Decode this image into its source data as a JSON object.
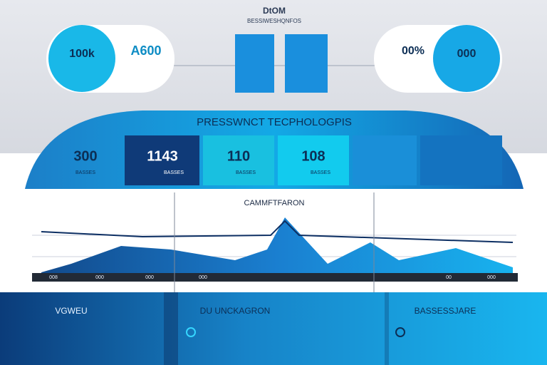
{
  "header": {
    "title": "DtOM",
    "subtitle": "BESSIWESHQNFOS"
  },
  "bubbles": [
    {
      "value": "100k"
    },
    {
      "value": "A600"
    },
    {
      "value": "00%"
    },
    {
      "value": "000"
    }
  ],
  "banner": {
    "title": "PRESSWNCT TECPHOLOGPIS",
    "panels": [
      {
        "value": "300",
        "caption": "BASSES"
      },
      {
        "value": "1143",
        "caption": "BASSES"
      },
      {
        "value": "110",
        "caption": "BASSES"
      },
      {
        "value": "108",
        "caption": "BASSES"
      }
    ]
  },
  "chart": {
    "title": "CAMMFTFARON",
    "labels": [
      "008",
      "000",
      "000",
      "000",
      "00",
      "000"
    ]
  },
  "footer": {
    "columns": [
      {
        "title": "VGWEU"
      },
      {
        "title": "DU UNCKAGRON"
      },
      {
        "title": "BASSESSJARE"
      }
    ]
  }
}
